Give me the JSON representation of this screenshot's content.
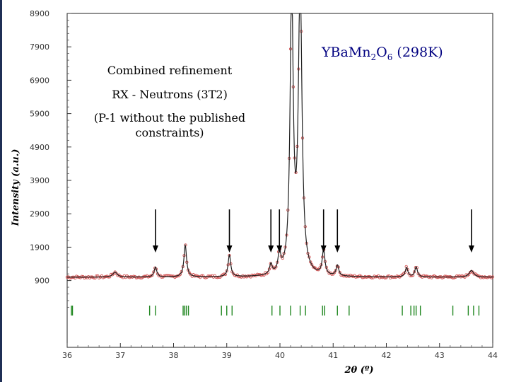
{
  "chart_data": {
    "type": "line",
    "title": {
      "base": "YBaMn",
      "sub1": "2",
      "mid": "O",
      "sub2": "6",
      "tail": " (298K)"
    },
    "xlabel": {
      "base": "2θ (º)"
    },
    "ylabel": "Intensity (a.u.)",
    "xlim": [
      36,
      44
    ],
    "ylim": [
      -1100,
      8900
    ],
    "x_ticks": [
      "36",
      "37",
      "38",
      "39",
      "40",
      "41",
      "42",
      "43",
      "44"
    ],
    "y_ticks": [
      "900",
      "1900",
      "2900",
      "3900",
      "4900",
      "5900",
      "6900",
      "7900",
      "8900"
    ],
    "annotations": [
      "Combined refinement",
      "RX - Neutrons (3T2)",
      "(P-1 without the published",
      "constraints)"
    ],
    "background_level": 1000,
    "peaks": [
      {
        "x": 36.9,
        "height": 150,
        "width": 0.05
      },
      {
        "x": 37.66,
        "height": 300,
        "width": 0.03
      },
      {
        "x": 38.22,
        "height": 950,
        "width": 0.03
      },
      {
        "x": 39.05,
        "height": 650,
        "width": 0.03
      },
      {
        "x": 39.83,
        "height": 300,
        "width": 0.03
      },
      {
        "x": 39.99,
        "height": 580,
        "width": 0.03
      },
      {
        "x": 40.22,
        "height": 8500,
        "width": 0.035
      },
      {
        "x": 40.38,
        "height": 8800,
        "width": 0.04
      },
      {
        "x": 40.82,
        "height": 750,
        "width": 0.03
      },
      {
        "x": 41.08,
        "height": 320,
        "width": 0.03
      },
      {
        "x": 42.38,
        "height": 280,
        "width": 0.03
      },
      {
        "x": 42.56,
        "height": 300,
        "width": 0.03
      },
      {
        "x": 43.6,
        "height": 200,
        "width": 0.05
      }
    ],
    "marked_peaks": [
      37.66,
      39.05,
      39.83,
      39.99,
      40.82,
      41.08,
      43.6
    ],
    "reflection_ticks": [
      36.08,
      36.1,
      37.55,
      37.66,
      38.18,
      38.21,
      38.24,
      38.28,
      38.9,
      39.0,
      39.1,
      39.85,
      40.0,
      40.2,
      40.38,
      40.48,
      40.8,
      40.84,
      41.08,
      41.3,
      42.3,
      42.46,
      42.52,
      42.56,
      42.64,
      43.25,
      43.54,
      43.64,
      43.74
    ],
    "colors": {
      "observed": "#d05050",
      "calculated": "#202020",
      "reflections": "#228822",
      "title": "#000080",
      "arrows": "#000000"
    }
  }
}
